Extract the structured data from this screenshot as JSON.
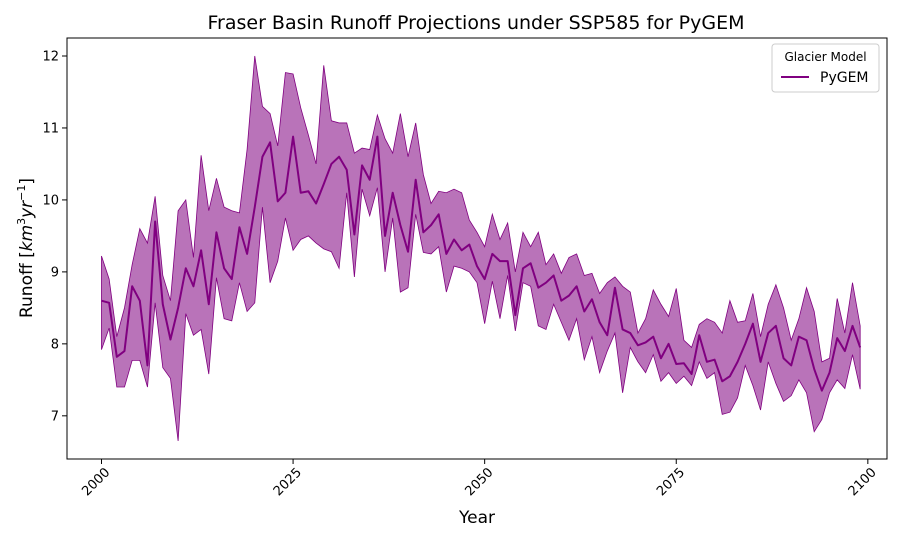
{
  "chart_data": {
    "type": "line",
    "title": "Fraser Basin Runoff Projections under SSP585 for PyGEM",
    "xlabel": "Year",
    "ylabel_main": "Runoff [",
    "ylabel_unit": "km",
    "ylabel_sup1": "3",
    "ylabel_unit2": "yr",
    "ylabel_sup2": "−1",
    "ylabel_close": "]",
    "xlim": [
      1995.5,
      2102.5
    ],
    "ylim": [
      6.4,
      12.25
    ],
    "xticks": [
      2000,
      2025,
      2050,
      2075,
      2100
    ],
    "yticks": [
      7,
      8,
      9,
      10,
      11,
      12
    ],
    "grid": false,
    "legend": {
      "title": "Glacier Model",
      "placement": "top-right"
    },
    "colors": {
      "line": "#800080",
      "band": "#800080"
    },
    "series": [
      {
        "name": "PyGEM",
        "x": [
          2000,
          2001,
          2002,
          2003,
          2004,
          2005,
          2006,
          2007,
          2008,
          2009,
          2010,
          2011,
          2012,
          2013,
          2014,
          2015,
          2016,
          2017,
          2018,
          2019,
          2020,
          2021,
          2022,
          2023,
          2024,
          2025,
          2026,
          2027,
          2028,
          2029,
          2030,
          2031,
          2032,
          2033,
          2034,
          2035,
          2036,
          2037,
          2038,
          2039,
          2040,
          2041,
          2042,
          2043,
          2044,
          2045,
          2046,
          2047,
          2048,
          2049,
          2050,
          2051,
          2052,
          2053,
          2054,
          2055,
          2056,
          2057,
          2058,
          2059,
          2060,
          2061,
          2062,
          2063,
          2064,
          2065,
          2066,
          2067,
          2068,
          2069,
          2070,
          2071,
          2072,
          2073,
          2074,
          2075,
          2076,
          2077,
          2078,
          2079,
          2080,
          2081,
          2082,
          2083,
          2084,
          2085,
          2086,
          2087,
          2088,
          2089,
          2090,
          2091,
          2092,
          2093,
          2094,
          2095,
          2096,
          2097,
          2098,
          2099
        ],
        "mean": [
          8.6,
          8.57,
          7.82,
          7.9,
          8.8,
          8.6,
          7.7,
          9.7,
          8.55,
          8.06,
          8.5,
          9.05,
          8.8,
          9.3,
          8.55,
          9.55,
          9.05,
          8.9,
          9.62,
          9.25,
          9.9,
          10.6,
          10.8,
          9.98,
          10.1,
          10.88,
          10.1,
          10.12,
          9.95,
          10.22,
          10.5,
          10.6,
          10.42,
          9.52,
          10.48,
          10.28,
          10.88,
          9.5,
          10.1,
          9.65,
          9.28,
          10.28,
          9.55,
          9.65,
          9.8,
          9.25,
          9.45,
          9.3,
          9.38,
          9.08,
          8.9,
          9.25,
          9.15,
          9.15,
          8.4,
          9.05,
          9.12,
          8.78,
          8.85,
          8.95,
          8.6,
          8.67,
          8.8,
          8.45,
          8.62,
          8.3,
          8.12,
          8.78,
          8.2,
          8.15,
          7.98,
          8.02,
          8.1,
          7.8,
          8.0,
          7.72,
          7.73,
          7.58,
          8.12,
          7.75,
          7.78,
          7.48,
          7.55,
          7.75,
          8.0,
          8.28,
          7.75,
          8.15,
          8.25,
          7.8,
          7.7,
          8.1,
          8.05,
          7.65,
          7.35,
          7.6,
          8.08,
          7.9,
          8.25,
          7.95
        ],
        "upper": [
          9.22,
          8.9,
          8.1,
          8.5,
          9.1,
          9.6,
          9.4,
          10.05,
          8.95,
          8.6,
          9.85,
          10.0,
          9.2,
          10.62,
          9.85,
          10.3,
          9.9,
          9.85,
          9.82,
          10.7,
          12.0,
          11.3,
          11.2,
          10.75,
          11.77,
          11.75,
          11.28,
          10.9,
          10.5,
          11.87,
          11.1,
          11.07,
          11.07,
          10.65,
          10.72,
          10.7,
          11.18,
          10.85,
          10.65,
          11.2,
          10.6,
          11.07,
          10.35,
          9.95,
          10.12,
          10.1,
          10.15,
          10.1,
          9.72,
          9.55,
          9.35,
          9.8,
          9.45,
          9.68,
          9.0,
          9.55,
          9.35,
          9.55,
          9.1,
          9.25,
          8.98,
          9.2,
          9.25,
          8.95,
          8.98,
          8.7,
          8.85,
          8.93,
          8.8,
          8.72,
          8.15,
          8.35,
          8.75,
          8.55,
          8.38,
          8.77,
          8.05,
          7.95,
          8.27,
          8.35,
          8.3,
          8.15,
          8.6,
          8.3,
          8.32,
          8.7,
          8.1,
          8.55,
          8.82,
          8.5,
          8.05,
          8.35,
          8.78,
          8.45,
          7.75,
          7.8,
          8.63,
          8.15,
          8.85,
          8.25
        ],
        "lower": [
          7.92,
          8.22,
          7.4,
          7.4,
          7.77,
          7.77,
          7.4,
          8.57,
          7.67,
          7.52,
          6.65,
          8.42,
          8.12,
          8.2,
          7.58,
          8.92,
          8.35,
          8.32,
          8.85,
          8.45,
          8.57,
          9.9,
          8.85,
          9.15,
          9.75,
          9.3,
          9.45,
          9.5,
          9.4,
          9.32,
          9.28,
          9.05,
          10.1,
          8.93,
          10.15,
          9.78,
          10.17,
          9.0,
          9.75,
          8.72,
          8.78,
          9.8,
          9.27,
          9.25,
          9.35,
          8.72,
          9.08,
          9.05,
          9.0,
          8.85,
          8.28,
          8.87,
          8.35,
          8.95,
          8.18,
          8.85,
          8.8,
          8.25,
          8.2,
          8.55,
          8.3,
          8.05,
          8.35,
          7.78,
          8.1,
          7.6,
          7.9,
          8.15,
          7.32,
          7.95,
          7.75,
          7.6,
          7.85,
          7.48,
          7.6,
          7.45,
          7.55,
          7.42,
          7.75,
          7.52,
          7.6,
          7.02,
          7.05,
          7.25,
          7.7,
          7.42,
          7.08,
          7.75,
          7.45,
          7.2,
          7.28,
          7.5,
          7.32,
          6.78,
          6.95,
          7.32,
          7.5,
          7.38,
          7.85,
          7.37
        ]
      }
    ]
  }
}
